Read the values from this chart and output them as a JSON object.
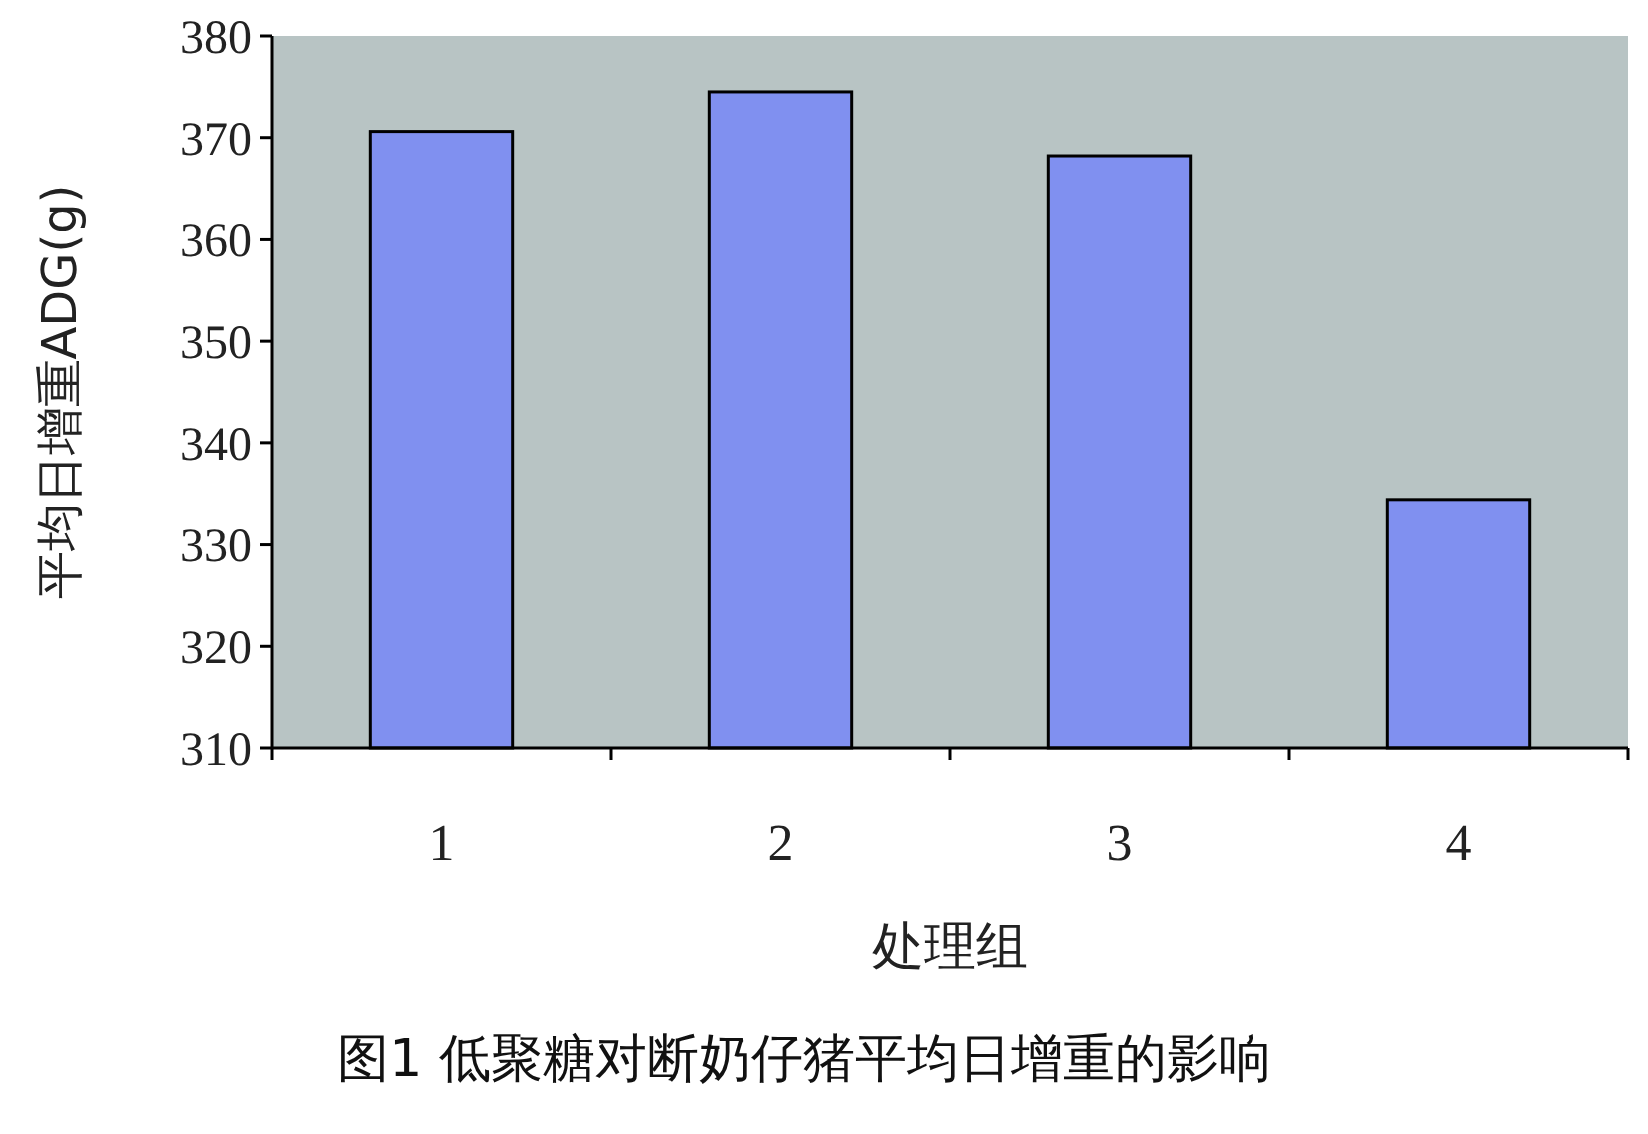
{
  "chart_data": {
    "type": "bar",
    "xlabel": "处理组",
    "ylabel": "平均日增重ADG(g)",
    "categories": [
      "1",
      "2",
      "3",
      "4"
    ],
    "values": [
      370.6,
      374.5,
      368.2,
      334.4
    ],
    "color": "#8090f0",
    "ylim": [
      310,
      380
    ],
    "yticks": [
      310,
      320,
      330,
      340,
      350,
      360,
      370,
      380
    ],
    "annotations": [
      "图1 低聚糖对断奶仔猪平均日增重的影响"
    ]
  }
}
